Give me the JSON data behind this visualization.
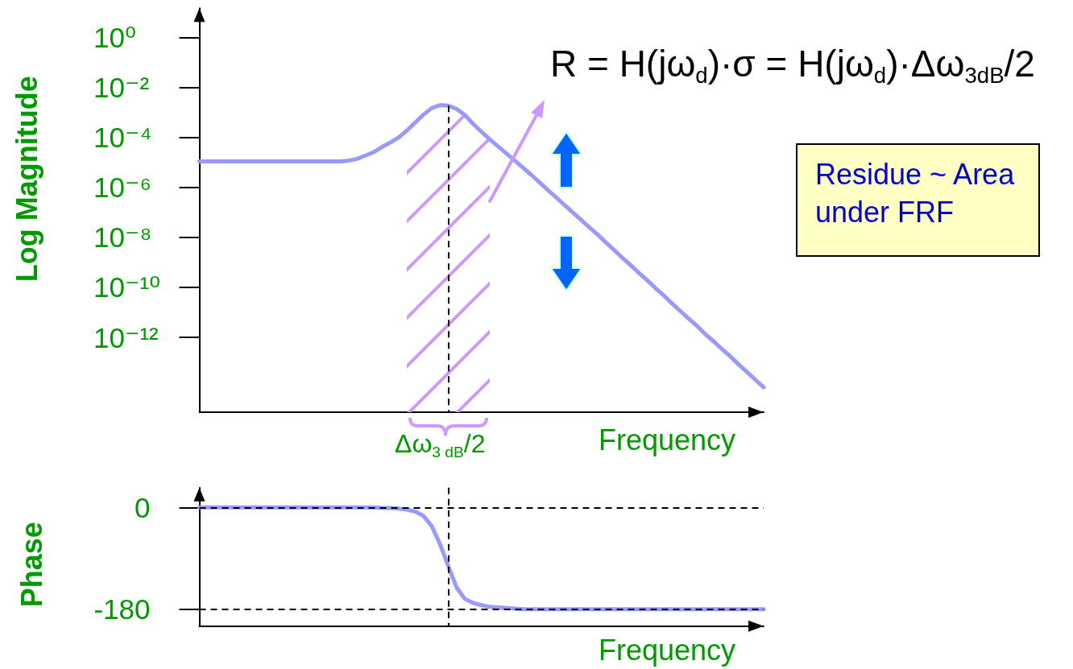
{
  "chart_data": [
    {
      "type": "line",
      "xlabel": "Frequency",
      "ylabel": "Log Magnitude",
      "log": true,
      "grid": false,
      "tick_labels": "y",
      "categories": [
        null,
        null,
        null,
        null,
        null,
        null,
        null,
        null,
        null,
        null,
        null,
        null,
        null,
        null,
        null,
        null,
        null,
        null,
        null,
        null,
        null,
        null,
        null,
        null,
        null,
        null,
        null,
        null,
        null,
        null,
        null,
        null,
        null,
        null,
        null,
        null,
        null,
        null,
        null,
        null,
        null,
        null,
        null,
        null,
        null,
        null,
        null,
        null,
        null,
        null,
        null,
        null,
        null,
        null,
        null,
        null,
        null,
        null,
        null,
        null,
        null,
        null,
        null,
        null,
        null,
        null,
        null,
        null,
        null
      ],
      "series": [
        {
          "color": "#9999ff",
          "values": [
            1.1e-05,
            1.1e-05,
            1.1e-05,
            1.1e-05,
            1.1e-05,
            1.1e-05,
            1.1e-05,
            1.1e-05,
            1.1e-05,
            1.1e-05,
            1.1e-05,
            1.1e-05,
            1.1e-05,
            1.1e-05,
            1.1e-05,
            1.1e-05,
            1.1e-05,
            1.1e-05,
            1.2e-05,
            1.4e-05,
            1.9e-05,
            2.6e-05,
            4.2e-05,
            6.3e-05,
            0.0001,
            0.00019,
            0.0004,
            0.00083,
            0.0015,
            0.002,
            0.0019,
            0.0014,
            0.00079,
            0.00035,
            0.00017,
            8.5e-05,
            4.4e-05,
            2.3e-05,
            1.2e-05,
            6.2e-06,
            3.2e-06,
            1.6e-06,
            7.9e-07,
            4e-07,
            2e-07,
            1e-07,
            5.1e-08,
            2.5e-08,
            1.3e-08,
            6.2e-09,
            3.1e-09,
            1.5e-09,
            7.6e-10,
            3.7e-10,
            1.9e-10,
            9.1e-11,
            4.6e-11,
            2.2e-11,
            1.1e-11,
            5.5e-12,
            2.8e-12,
            1.3e-12,
            6.8e-13,
            3.3e-13,
            1.7e-13,
            8.1e-14,
            4.1e-14,
            2e-14,
            1e-14
          ]
        },
        {
          "type": "area",
          "color": "#cc99ff",
          "values": [
            null,
            null,
            null,
            null,
            null,
            null,
            null,
            null,
            null,
            null,
            null,
            null,
            null,
            null,
            null,
            null,
            null,
            null,
            null,
            null,
            null,
            null,
            null,
            null,
            null,
            0.00019,
            0.0004,
            0.00083,
            0.0015,
            0.002,
            0.0019,
            0.0014,
            0.00079,
            0.00035,
            0.00017,
            8.5e-05,
            null,
            null,
            null,
            null,
            null,
            null,
            null,
            null,
            null,
            null,
            null,
            null,
            null,
            null,
            null,
            null,
            null,
            null,
            null,
            null,
            null,
            null,
            null,
            null,
            null,
            null,
            null,
            null,
            null,
            null,
            null,
            null,
            null
          ]
        }
      ],
      "ylim": [
        1e-15,
        15
      ],
      "yticks": [
        {
          "value": 1,
          "label": "10⁰"
        },
        {
          "value": 0.01,
          "label": "10⁻²"
        },
        {
          "value": 0.0001,
          "label": "10⁻⁴"
        },
        {
          "value": 1e-06,
          "label": "10⁻⁶"
        },
        {
          "value": 1e-08,
          "label": "10⁻⁸"
        },
        {
          "value": 1e-10,
          "label": "10⁻¹⁰"
        },
        {
          "value": 1e-12,
          "label": "10⁻¹²"
        }
      ],
      "annotations": [
        "R = H(jω$_{d}$)·σ = H(jω$_{d}$)·Δω$_{3dB}$/2",
        "Residue ~ Area under FRF",
        "Δω$_{3 dB}$/2"
      ]
    },
    {
      "type": "line",
      "xlabel": "Frequency",
      "ylabel": "Phase",
      "grid": false,
      "tick_labels": "y",
      "categories": [
        null,
        null,
        null,
        null,
        null,
        null,
        null,
        null,
        null,
        null,
        null,
        null,
        null,
        null,
        null,
        null,
        null,
        null,
        null,
        null,
        null,
        null,
        null,
        null,
        null,
        null,
        null,
        null,
        null,
        null,
        null,
        null,
        null,
        null,
        null,
        null,
        null,
        null,
        null,
        null,
        null,
        null,
        null,
        null,
        null,
        null,
        null,
        null,
        null,
        null,
        null,
        null,
        null,
        null,
        null,
        null,
        null,
        null,
        null,
        null,
        null,
        null,
        null,
        null,
        null,
        null,
        null,
        null,
        null
      ],
      "series": [
        {
          "color": "#9999ff",
          "values": [
            0,
            0,
            0,
            0,
            0,
            0,
            0,
            0,
            0,
            0,
            0,
            0,
            0,
            0,
            0,
            0,
            0,
            0,
            0,
            0,
            0,
            0,
            -1,
            -1,
            -2,
            -4,
            -7,
            -15,
            -33,
            -65,
            -104,
            -142,
            -162,
            -169,
            -173,
            -176,
            -177,
            -178,
            -179,
            -180,
            -180,
            -180,
            -180,
            -180,
            -180,
            -180,
            -180,
            -180,
            -180,
            -180,
            -180,
            -180,
            -180,
            -180,
            -180,
            -180,
            -180,
            -180,
            -180,
            -180,
            -180,
            -180,
            -180,
            -180,
            -180,
            -180,
            -180,
            -180,
            -180
          ]
        }
      ],
      "ylim": [
        -210,
        35
      ],
      "yticks": [
        -180,
        0
      ],
      "ref_lines": [
        {
          "axis": "y",
          "value": 0,
          "line_style": "dashed",
          "color": "#000000"
        },
        {
          "axis": "y",
          "value": -180,
          "line_style": "dashed",
          "color": "#000000"
        }
      ]
    }
  ]
}
